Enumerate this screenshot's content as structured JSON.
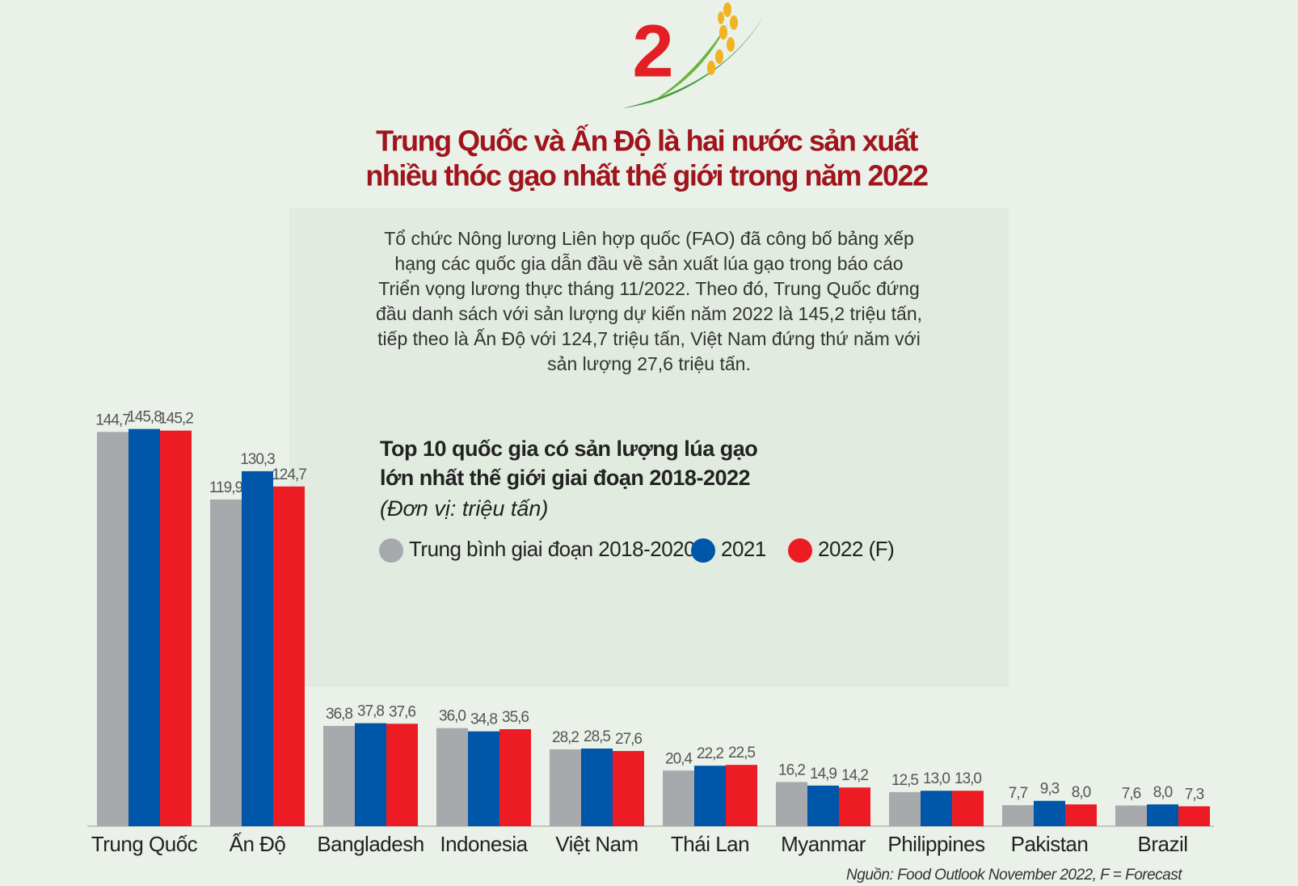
{
  "chart_data": {
    "type": "bar",
    "badge": "2",
    "title_lines": [
      "Trung Quốc và Ấn Độ là hai nước sản xuất",
      "nhiều thóc gạo nhất thế giới trong năm 2022"
    ],
    "description": [
      "Tổ chức Nông lương Liên hợp quốc (FAO) đã công bố bảng xếp",
      "hạng các quốc gia dẫn đầu về sản xuất lúa gạo trong báo cáo",
      "Triển vọng lương thực tháng 11/2022. Theo đó, Trung Quốc đứng",
      "đầu danh sách với sản lượng dự kiến năm 2022 là 145,2 triệu tấn,",
      "tiếp theo là Ấn Độ với 124,7 triệu tấn, Việt Nam đứng thứ năm với",
      "sản lượng 27,6 triệu tấn."
    ],
    "subtitle_lines": [
      "Top 10 quốc gia có sản lượng lúa gạo",
      "lớn nhất thế giới giai đoạn 2018-2022"
    ],
    "unit": "(Đơn vị: triệu tấn)",
    "source": "Nguồn: Food Outlook November 2022, F = Forecast",
    "categories": [
      "Trung Quốc",
      "Ấn Độ",
      "Bangladesh",
      "Indonesia",
      "Việt Nam",
      "Thái Lan",
      "Myanmar",
      "Philippines",
      "Pakistan",
      "Brazil"
    ],
    "series": [
      {
        "name": "Trung bình giai đoạn 2018-2020",
        "color": "#a7a9ac",
        "values": [
          144.7,
          119.9,
          36.8,
          36.0,
          28.2,
          20.4,
          16.2,
          12.5,
          7.7,
          7.6
        ],
        "value_labels": [
          "144,7",
          "119,9",
          "36,8",
          "36,0",
          "28,2",
          "20,4",
          "16,2",
          "12,5",
          "7,7",
          "7,6"
        ]
      },
      {
        "name": "2021",
        "color": "#0056a8",
        "values": [
          145.8,
          130.3,
          37.8,
          34.8,
          28.5,
          22.2,
          14.9,
          13.0,
          9.3,
          8.0
        ],
        "value_labels": [
          "145,8",
          "130,3",
          "37,8",
          "34,8",
          "28,5",
          "22,2",
          "14,9",
          "13,0",
          "9,3",
          "8,0"
        ]
      },
      {
        "name": "2022 (F)",
        "color": "#ed1c24",
        "values": [
          145.2,
          124.7,
          37.6,
          35.6,
          27.6,
          22.5,
          14.2,
          13.0,
          8.0,
          7.3
        ],
        "value_labels": [
          "145,2",
          "124,7",
          "37,6",
          "35,6",
          "27,6",
          "22,5",
          "14,2",
          "13,0",
          "8,0",
          "7,3"
        ]
      }
    ]
  }
}
